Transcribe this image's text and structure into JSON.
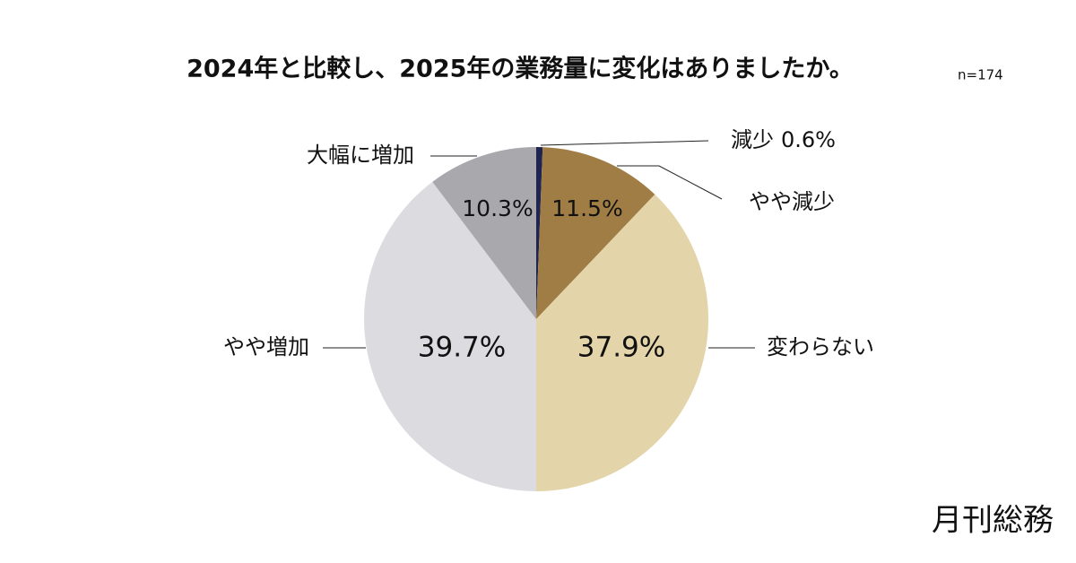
{
  "chart_data": {
    "type": "pie",
    "title": "2024年と比較し、2025年の業務量に変化はありましたか。",
    "note": "n=174",
    "brand": "月刊総務",
    "categories": [
      "減少",
      "やや減少",
      "変わらない",
      "やや増加",
      "大幅に増加"
    ],
    "values": [
      0.6,
      11.5,
      37.9,
      39.7,
      10.3
    ],
    "value_labels": [
      "0.6%",
      "11.5%",
      "37.9%",
      "39.7%",
      "10.3%"
    ],
    "colors": [
      "#1f2550",
      "#a07d45",
      "#e3d5a9",
      "#dcdbe0",
      "#a9a8ad"
    ]
  }
}
